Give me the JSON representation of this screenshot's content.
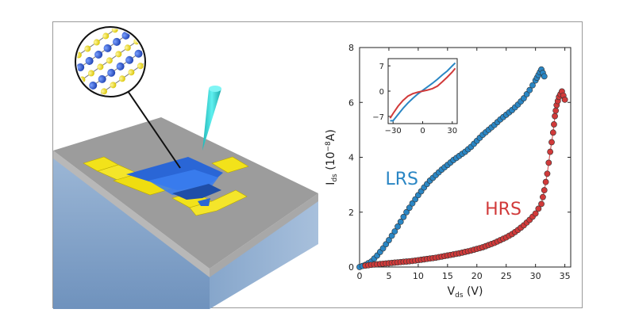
{
  "figure": {
    "colors": {
      "lrs": "#2a86c4",
      "hrs": "#d13a3a",
      "gold": "#f2e21a",
      "channel": "#2a66d6",
      "tip": "#2fd6d6",
      "substrate_top": "#9a9a9a",
      "substrate_side": "#7ea1c6"
    }
  },
  "chart_data": [
    {
      "type": "scatter",
      "title": "",
      "xlabel_main": "V",
      "xlabel_sub": "ds",
      "xlabel_unit": " (V)",
      "ylabel_main": "I",
      "ylabel_sub": "ds",
      "ylabel_unit_pre": " (10",
      "ylabel_exp": "−8",
      "ylabel_unit_post": "A)",
      "xlim": [
        0,
        36
      ],
      "ylim": [
        0,
        8
      ],
      "xticks": [
        "0",
        "5",
        "10",
        "15",
        "20",
        "25",
        "30",
        "35"
      ],
      "yticks": [
        "0",
        "2",
        "4",
        "6",
        "8"
      ],
      "annotations": {
        "lrs": "LRS",
        "hrs": "HRS"
      },
      "series": [
        {
          "name": "LRS",
          "x": [
            0,
            1,
            2,
            3,
            4,
            5,
            6,
            7,
            8,
            9,
            10,
            11,
            12,
            13,
            14,
            15,
            16,
            17,
            18,
            19,
            20,
            21,
            22,
            23,
            24,
            25,
            26,
            27,
            28,
            29,
            30,
            30.5,
            31,
            31.5
          ],
          "y": [
            0,
            0.08,
            0.2,
            0.42,
            0.68,
            0.98,
            1.3,
            1.65,
            2.0,
            2.32,
            2.62,
            2.9,
            3.15,
            3.35,
            3.55,
            3.72,
            3.9,
            4.05,
            4.2,
            4.38,
            4.6,
            4.82,
            5.0,
            5.18,
            5.38,
            5.55,
            5.72,
            5.92,
            6.15,
            6.45,
            6.8,
            7.0,
            7.2,
            6.95
          ]
        },
        {
          "name": "HRS",
          "x": [
            1,
            2,
            3,
            4,
            5,
            6,
            7,
            8,
            9,
            10,
            11,
            12,
            13,
            14,
            15,
            16,
            17,
            18,
            19,
            20,
            21,
            22,
            23,
            24,
            25,
            26,
            27,
            28,
            29,
            30,
            31,
            31.5,
            32,
            32.5,
            33,
            33.3,
            33.6,
            34,
            34.5,
            35
          ],
          "y": [
            0.05,
            0.08,
            0.1,
            0.12,
            0.14,
            0.16,
            0.18,
            0.2,
            0.22,
            0.25,
            0.28,
            0.31,
            0.34,
            0.38,
            0.42,
            0.46,
            0.5,
            0.55,
            0.6,
            0.66,
            0.72,
            0.8,
            0.88,
            0.98,
            1.08,
            1.2,
            1.35,
            1.52,
            1.72,
            1.95,
            2.3,
            2.8,
            3.4,
            4.2,
            4.9,
            5.5,
            5.9,
            6.2,
            6.4,
            6.1
          ]
        }
      ]
    },
    {
      "type": "line",
      "title": "",
      "xlim": [
        -35,
        35
      ],
      "ylim": [
        -9,
        9
      ],
      "xticks": [
        "−30",
        "0",
        "30"
      ],
      "yticks": [
        "7",
        "0",
        "−7"
      ],
      "series": [
        {
          "name": "LRS",
          "x": [
            -33,
            -30,
            -25,
            -20,
            -15,
            -10,
            -5,
            0,
            5,
            10,
            15,
            20,
            25,
            30,
            33
          ],
          "y": [
            -8.2,
            -8.2,
            -6.5,
            -4.8,
            -3.3,
            -2.0,
            -0.8,
            0.2,
            1.2,
            2.2,
            3.3,
            4.5,
            5.6,
            7.0,
            7.8
          ]
        },
        {
          "name": "HRS",
          "x": [
            -33,
            -30,
            -25,
            -20,
            -15,
            -10,
            -5,
            0,
            5,
            10,
            15,
            20,
            25,
            30,
            33
          ],
          "y": [
            -7.5,
            -6.2,
            -4.2,
            -2.6,
            -1.4,
            -0.7,
            -0.3,
            0.0,
            0.3,
            0.7,
            1.4,
            2.6,
            3.9,
            5.3,
            6.3
          ]
        }
      ]
    }
  ]
}
